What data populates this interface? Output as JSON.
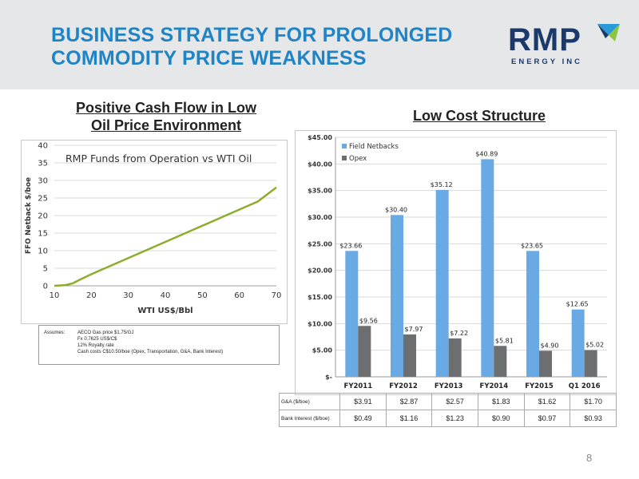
{
  "header": {
    "title_line1": "BUSINESS STRATEGY FOR PROLONGED",
    "title_line2": "COMMODITY PRICE WEAKNESS",
    "logo_text": "RMP",
    "logo_subtext": "ENERGY INC",
    "logo_mark": "check-arrow-icon"
  },
  "left_panel": {
    "title_line1": "Positive Cash Flow in Low",
    "title_line2": "Oil Price Environment",
    "assumes": {
      "label": "Assumes:",
      "lines": [
        "AECO Gas price $1.75/GJ",
        "Fx  0.7625 US$/C$",
        "12% Royalty rate",
        "Cash costs  C$10.50/boe (Opex, Transportation, G&A, Bank Interest)"
      ]
    }
  },
  "right_panel": {
    "title": "Low Cost Structure",
    "table": {
      "rows": [
        {
          "label": "G&A ($/boe)",
          "values": [
            "$3.91",
            "$2.87",
            "$2.57",
            "$1.83",
            "$1.62",
            "$1.70"
          ]
        },
        {
          "label": "Bank Interest ($/boe)",
          "values": [
            "$0.49",
            "$1.16",
            "$1.23",
            "$0.90",
            "$0.97",
            "$0.93"
          ]
        }
      ]
    }
  },
  "page_number": "8",
  "chart_data": [
    {
      "type": "line",
      "title": "RMP Funds from Operation vs WTI Oil",
      "xlabel": "WTI US$/Bbl",
      "ylabel": "FFO Netback $/boe",
      "xlim": [
        10,
        70
      ],
      "ylim": [
        0,
        40
      ],
      "xticks": [
        10,
        20,
        30,
        40,
        50,
        60,
        70
      ],
      "yticks": [
        0,
        5,
        10,
        15,
        20,
        25,
        30,
        35,
        40
      ],
      "grid": true,
      "series": [
        {
          "color": "#8cad2b",
          "x": [
            10,
            13,
            15,
            17,
            20,
            25,
            30,
            35,
            40,
            45,
            50,
            55,
            60,
            65,
            70
          ],
          "y": [
            0,
            0.2,
            0.7,
            1.8,
            3.3,
            5.6,
            7.9,
            10.2,
            12.5,
            14.8,
            17.1,
            19.4,
            21.7,
            24.0,
            28.0
          ]
        }
      ]
    },
    {
      "type": "bar",
      "categories": [
        "FY2011",
        "FY2012",
        "FY2013",
        "FY2014",
        "FY2015",
        "Q1 2016"
      ],
      "ylim": [
        0,
        45
      ],
      "yticks": [
        0,
        5,
        10,
        15,
        20,
        25,
        30,
        35,
        40,
        45
      ],
      "ytick_labels": [
        "$-",
        "$5.00",
        "$10.00",
        "$15.00",
        "$20.00",
        "$25.00",
        "$30.00",
        "$35.00",
        "$40.00",
        "$45.00"
      ],
      "legend": "top-left",
      "grid": true,
      "series": [
        {
          "name": "Field Netbacks",
          "color": "#6aaae4",
          "values": [
            23.66,
            30.4,
            35.12,
            40.89,
            23.65,
            12.65
          ],
          "labels": [
            "$23.66",
            "$30.40",
            "$35.12",
            "$40.89",
            "$23.65",
            "$12.65"
          ]
        },
        {
          "name": "Opex",
          "color": "#6d6e70",
          "values": [
            9.56,
            7.97,
            7.22,
            5.81,
            4.9,
            5.02
          ],
          "labels": [
            "$9.56",
            "$7.97",
            "$7.22",
            "$5.81",
            "$4.90",
            "$5.02"
          ]
        }
      ]
    }
  ]
}
